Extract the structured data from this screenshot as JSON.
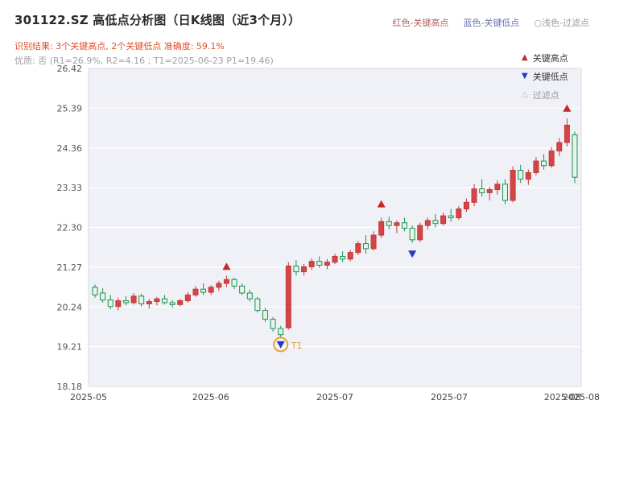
{
  "header": {
    "title": "301122.SZ 高低点分析图（日K线图（近3个月））",
    "legend": [
      {
        "label": "红色-关键高点",
        "color": "#b06060"
      },
      {
        "label": "蓝色-关键低点",
        "color": "#6a74b0"
      },
      {
        "label": "○浅色-过滤点",
        "color": "#9a9aa2"
      }
    ],
    "result_line": "识别结果: 3个关键高点, 2个关键低点  准确度: 59.1%",
    "quality_line": "优质: 否 (R1=26.9%, R2=4.16 ; T1=2025-06-23 P1=19.46)"
  },
  "chart_data": {
    "type": "candlestick",
    "title": "301122.SZ 高低点分析图（日K线图（近3个月））",
    "ylim": [
      18.18,
      26.42
    ],
    "y_ticks": [
      "26.42",
      "25.39",
      "24.36",
      "23.33",
      "22.30",
      "21.27",
      "20.24",
      "19.21",
      "18.18"
    ],
    "x_ticks": [
      {
        "pos": 0.0,
        "label": "2025-05"
      },
      {
        "pos": 0.248,
        "label": "2025-06"
      },
      {
        "pos": 0.5,
        "label": "2025-07"
      },
      {
        "pos": 0.732,
        "label": "2025-07"
      },
      {
        "pos": 0.962,
        "label": "2025-08"
      },
      {
        "pos": 1.0,
        "label": "2025-08"
      }
    ],
    "grid": true,
    "candles": [
      [
        20.75,
        20.82,
        20.48,
        20.55
      ],
      [
        20.6,
        20.72,
        20.35,
        20.42
      ],
      [
        20.42,
        20.55,
        20.18,
        20.25
      ],
      [
        20.25,
        20.48,
        20.15,
        20.4
      ],
      [
        20.4,
        20.52,
        20.28,
        20.35
      ],
      [
        20.35,
        20.6,
        20.3,
        20.52
      ],
      [
        20.52,
        20.58,
        20.25,
        20.32
      ],
      [
        20.32,
        20.45,
        20.2,
        20.38
      ],
      [
        20.38,
        20.5,
        20.28,
        20.45
      ],
      [
        20.45,
        20.55,
        20.3,
        20.35
      ],
      [
        20.35,
        20.42,
        20.22,
        20.3
      ],
      [
        20.3,
        20.45,
        20.25,
        20.4
      ],
      [
        20.4,
        20.62,
        20.35,
        20.55
      ],
      [
        20.55,
        20.78,
        20.5,
        20.7
      ],
      [
        20.7,
        20.85,
        20.55,
        20.62
      ],
      [
        20.62,
        20.8,
        20.55,
        20.75
      ],
      [
        20.75,
        20.92,
        20.65,
        20.85
      ],
      [
        20.85,
        21.05,
        20.75,
        20.95
      ],
      [
        20.95,
        21.0,
        20.7,
        20.78
      ],
      [
        20.78,
        20.85,
        20.55,
        20.6
      ],
      [
        20.6,
        20.68,
        20.38,
        20.45
      ],
      [
        20.45,
        20.5,
        20.1,
        20.15
      ],
      [
        20.15,
        20.22,
        19.85,
        19.92
      ],
      [
        19.92,
        19.98,
        19.6,
        19.68
      ],
      [
        19.68,
        19.75,
        19.46,
        19.52
      ],
      [
        19.7,
        21.4,
        19.65,
        21.3
      ],
      [
        21.3,
        21.45,
        21.05,
        21.15
      ],
      [
        21.15,
        21.35,
        21.05,
        21.28
      ],
      [
        21.28,
        21.5,
        21.2,
        21.42
      ],
      [
        21.42,
        21.55,
        21.25,
        21.32
      ],
      [
        21.32,
        21.48,
        21.22,
        21.4
      ],
      [
        21.4,
        21.62,
        21.35,
        21.55
      ],
      [
        21.55,
        21.68,
        21.4,
        21.48
      ],
      [
        21.48,
        21.72,
        21.42,
        21.65
      ],
      [
        21.65,
        21.95,
        21.58,
        21.88
      ],
      [
        21.88,
        22.1,
        21.62,
        21.75
      ],
      [
        21.75,
        22.2,
        21.7,
        22.1
      ],
      [
        22.1,
        22.55,
        22.02,
        22.45
      ],
      [
        22.45,
        22.58,
        22.25,
        22.35
      ],
      [
        22.35,
        22.48,
        22.15,
        22.42
      ],
      [
        22.42,
        22.55,
        22.2,
        22.28
      ],
      [
        22.28,
        22.35,
        21.9,
        21.98
      ],
      [
        21.98,
        22.42,
        21.92,
        22.35
      ],
      [
        22.35,
        22.55,
        22.25,
        22.48
      ],
      [
        22.48,
        22.65,
        22.3,
        22.4
      ],
      [
        22.4,
        22.68,
        22.35,
        22.6
      ],
      [
        22.6,
        22.78,
        22.45,
        22.55
      ],
      [
        22.55,
        22.85,
        22.5,
        22.78
      ],
      [
        22.78,
        23.05,
        22.7,
        22.95
      ],
      [
        22.95,
        23.42,
        22.85,
        23.3
      ],
      [
        23.3,
        23.55,
        23.1,
        23.2
      ],
      [
        23.2,
        23.35,
        23.0,
        23.28
      ],
      [
        23.28,
        23.52,
        23.15,
        23.42
      ],
      [
        23.42,
        23.55,
        22.9,
        23.0
      ],
      [
        23.0,
        23.88,
        22.95,
        23.78
      ],
      [
        23.78,
        23.92,
        23.45,
        23.55
      ],
      [
        23.55,
        23.8,
        23.4,
        23.72
      ],
      [
        23.72,
        24.12,
        23.65,
        24.02
      ],
      [
        24.02,
        24.2,
        23.8,
        23.9
      ],
      [
        23.9,
        24.38,
        23.85,
        24.28
      ],
      [
        24.28,
        24.62,
        24.15,
        24.5
      ],
      [
        24.5,
        25.12,
        24.4,
        24.95
      ],
      [
        24.7,
        24.78,
        23.45,
        23.6
      ]
    ],
    "markers": {
      "key_highs": [
        {
          "index": 17,
          "price": 21.2
        },
        {
          "index": 37,
          "price": 22.82
        },
        {
          "index": 61,
          "price": 25.3
        }
      ],
      "key_lows": [
        {
          "index": 24,
          "price": 19.35,
          "label": "T1",
          "ringed": true
        },
        {
          "index": 41,
          "price": 21.7
        }
      ]
    },
    "plot_legend": [
      {
        "label": "关键高点",
        "glyph": "▲",
        "color": "#c62828"
      },
      {
        "label": "关键低点",
        "glyph": "▼",
        "color": "#2438c8"
      },
      {
        "label": "过滤点",
        "glyph": "△",
        "color": "#b9b9c2"
      }
    ],
    "colors": {
      "up": "#d64545",
      "up_stroke": "#c03a3a",
      "down": "#e6f4ea",
      "down_stroke": "#1c9150",
      "key_high": "#c62828",
      "key_low": "#2438c8",
      "ring": "#e6a235",
      "plot_bg": "#f0f1f6",
      "grid": "#ffffff",
      "border": "#d9dae3",
      "axis_text": "#555555"
    }
  }
}
